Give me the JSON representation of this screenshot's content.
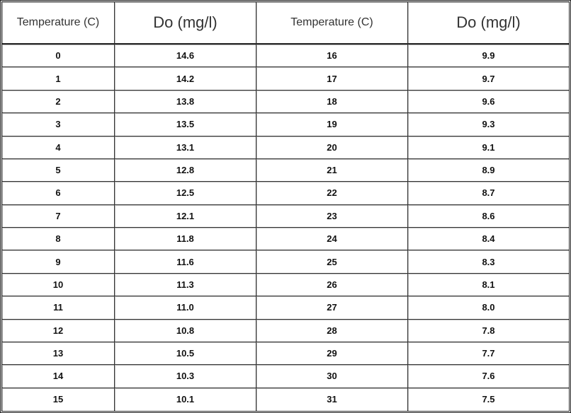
{
  "table": {
    "header": [
      "Temperature (C)",
      "Do (mg/l)",
      "Temperature (C)",
      "Do (mg/l)"
    ],
    "rows": [
      [
        "0",
        "14.6",
        "16",
        "9.9"
      ],
      [
        "1",
        "14.2",
        "17",
        "9.7"
      ],
      [
        "2",
        "13.8",
        "18",
        "9.6"
      ],
      [
        "3",
        "13.5",
        "19",
        "9.3"
      ],
      [
        "4",
        "13.1",
        "20",
        "9.1"
      ],
      [
        "5",
        "12.8",
        "21",
        "8.9"
      ],
      [
        "6",
        "12.5",
        "22",
        "8.7"
      ],
      [
        "7",
        "12.1",
        "23",
        "8.6"
      ],
      [
        "8",
        "11.8",
        "24",
        "8.4"
      ],
      [
        "9",
        "11.6",
        "25",
        "8.3"
      ],
      [
        "10",
        "11.3",
        "26",
        "8.1"
      ],
      [
        "11",
        "11.0",
        "27",
        "8.0"
      ],
      [
        "12",
        "10.8",
        "28",
        "7.8"
      ],
      [
        "13",
        "10.5",
        "29",
        "7.7"
      ],
      [
        "14",
        "10.3",
        "30",
        "7.6"
      ],
      [
        "15",
        "10.1",
        "31",
        "7.5"
      ]
    ]
  }
}
